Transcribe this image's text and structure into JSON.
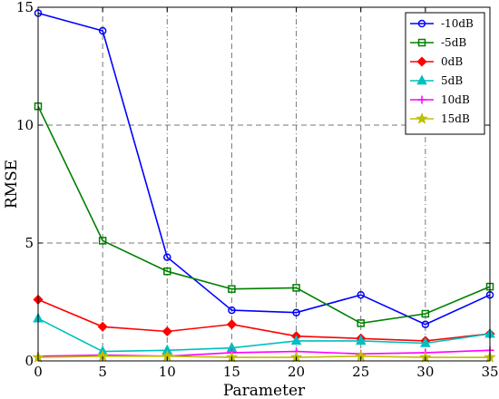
{
  "chart_data": {
    "type": "line",
    "xlabel": "Parameter",
    "ylabel": "RMSE",
    "xlim": [
      0,
      35
    ],
    "ylim": [
      0,
      15
    ],
    "xticks": [
      0,
      5,
      10,
      15,
      20,
      25,
      30,
      35
    ],
    "yticks": [
      0,
      5,
      10,
      15
    ],
    "grid": true,
    "legend_position": "top-right",
    "x": [
      0,
      5,
      10,
      15,
      20,
      25,
      30,
      35
    ],
    "series": [
      {
        "name": "-10dB",
        "color": "#0000ff",
        "marker": "circle",
        "values": [
          14.75,
          14.0,
          4.4,
          2.15,
          2.05,
          2.8,
          1.55,
          2.8
        ]
      },
      {
        "name": "-5dB",
        "color": "#008000",
        "marker": "square",
        "values": [
          10.8,
          5.1,
          3.8,
          3.05,
          3.1,
          1.6,
          2.0,
          3.15
        ]
      },
      {
        "name": "0dB",
        "color": "#ff0000",
        "marker": "diamond",
        "values": [
          2.6,
          1.45,
          1.25,
          1.55,
          1.05,
          0.95,
          0.85,
          1.15
        ]
      },
      {
        "name": "5dB",
        "color": "#00bfbf",
        "marker": "triangle",
        "values": [
          1.8,
          0.4,
          0.45,
          0.55,
          0.85,
          0.85,
          0.75,
          1.15
        ]
      },
      {
        "name": "10dB",
        "color": "#ff00ff",
        "marker": "plus",
        "values": [
          0.2,
          0.25,
          0.2,
          0.35,
          0.4,
          0.3,
          0.35,
          0.45
        ]
      },
      {
        "name": "15dB",
        "color": "#bfbf00",
        "marker": "star",
        "values": [
          0.15,
          0.2,
          0.2,
          0.15,
          0.15,
          0.2,
          0.15,
          0.15
        ]
      }
    ]
  }
}
